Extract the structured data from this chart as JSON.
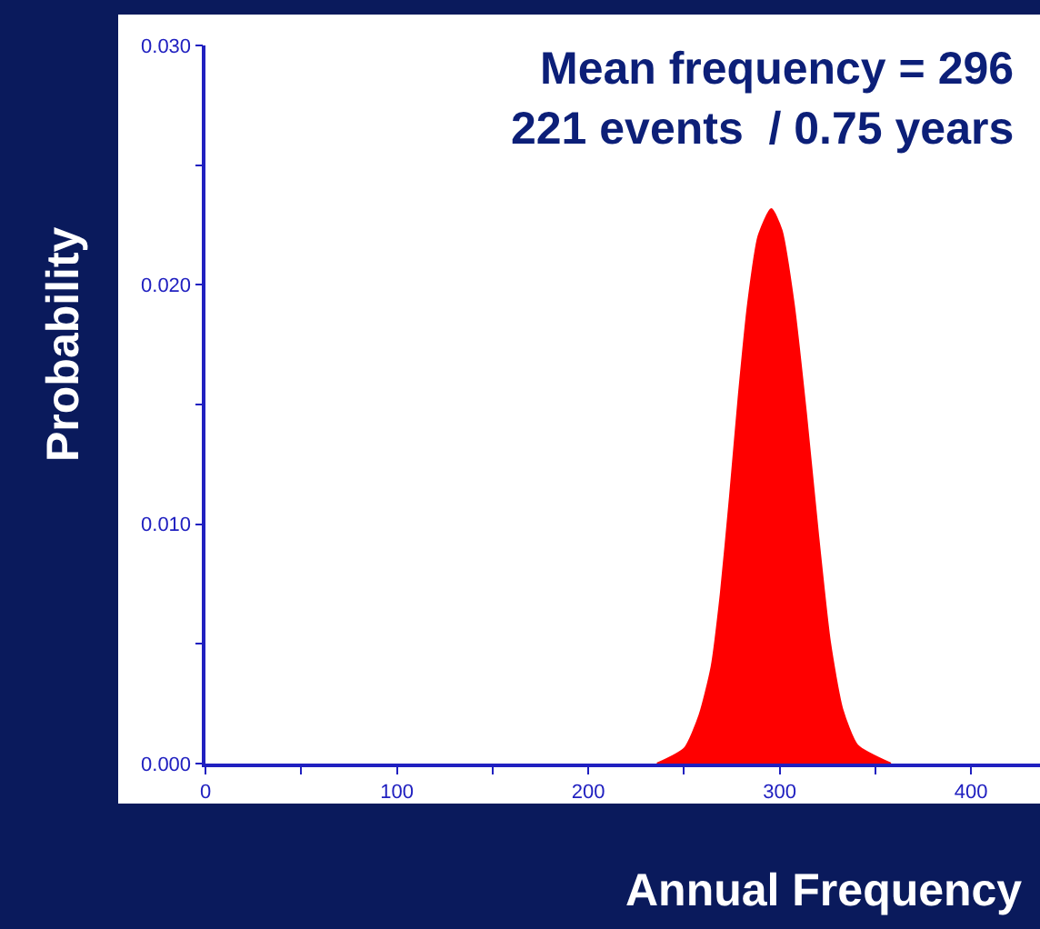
{
  "chart_data": {
    "type": "area",
    "xlabel": "Annual Frequency",
    "ylabel": "Probability",
    "annotations": [
      "Mean frequency = 296",
      "221 events  / 0.75 years"
    ],
    "x": [
      235.9,
      250.2,
      258.1,
      264.4,
      269.2,
      274.0,
      278.7,
      283.5,
      288.9,
      295.6,
      301.0,
      307.3,
      313.7,
      320.0,
      326.3,
      332.7,
      340.6,
      358.1
    ],
    "series": [
      {
        "color": "#ff0000",
        "values": [
          0,
          0.00063,
          0.00203,
          0.00405,
          0.00709,
          0.01114,
          0.01544,
          0.01924,
          0.02203,
          0.02316,
          0.02228,
          0.01924,
          0.01468,
          0.00962,
          0.00507,
          0.00228,
          0.00076,
          0
        ]
      }
    ],
    "xlim": [
      0,
      436
    ],
    "ylim": [
      0,
      0.03
    ],
    "xticks": [
      0,
      {
        "value": 50,
        "label": null
      },
      100,
      {
        "value": 150,
        "label": null
      },
      200,
      {
        "value": 250,
        "label": null
      },
      300,
      {
        "value": 350,
        "label": null
      },
      400
    ],
    "yticks": [
      {
        "value": 0,
        "label": "0.000"
      },
      {
        "value": 0.005,
        "label": null
      },
      {
        "value": 0.01,
        "label": "0.010"
      },
      {
        "value": 0.015,
        "label": null
      },
      {
        "value": 0.02,
        "label": "0.020"
      },
      {
        "value": 0.025,
        "label": null
      },
      {
        "value": 0.03,
        "label": "0.030"
      }
    ],
    "grid": false,
    "legend": false
  }
}
